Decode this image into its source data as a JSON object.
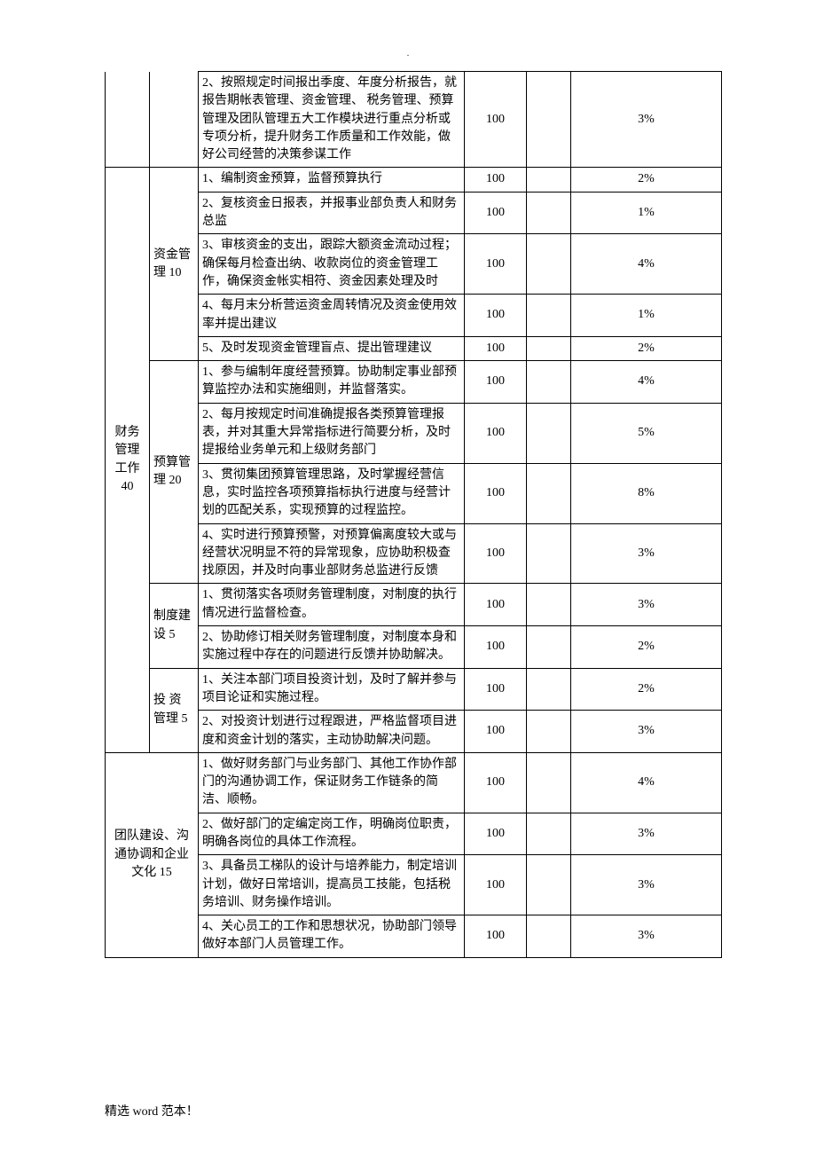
{
  "page": {
    "topmark": ".",
    "footer": "精选 word 范本！"
  },
  "table": {
    "colors": {
      "border": "#000000",
      "bg": "#ffffff",
      "text": "#000000"
    },
    "rows": [
      {
        "sec1": "",
        "sec2": "",
        "desc": "2、按照规定时间报出季度、年度分析报告，就报告期帐表管理、资金管理、 税务管理、预算管理及团队管理五大工作模块进行重点分析或专项分析，提升财务工作质量和工作效能，做好公司经营的决策参谋工作",
        "val": "100",
        "pct": "3%"
      },
      {
        "sec1": "财务管理工作40",
        "sec2": "资金管理 10",
        "desc": "1、编制资金预算，监督预算执行",
        "val": "100",
        "pct": "2%"
      },
      {
        "sec1": "",
        "sec2": "",
        "desc": "2、复核资金日报表，并报事业部负责人和财务总监",
        "val": "100",
        "pct": "1%"
      },
      {
        "sec1": "",
        "sec2": "",
        "desc": "3、审核资金的支出，跟踪大额资金流动过程； 确保每月检查出纳、收款岗位的资金管理工作，确保资金帐实相符、资金因素处理及时",
        "val": "100",
        "pct": "4%"
      },
      {
        "sec1": "",
        "sec2": "",
        "desc": "4、每月末分析营运资金周转情况及资金使用效率并提出建议",
        "val": "100",
        "pct": "1%"
      },
      {
        "sec1": "",
        "sec2": "",
        "desc": "5、及时发现资金管理盲点、提出管理建议",
        "val": "100",
        "pct": "2%"
      },
      {
        "sec1": "",
        "sec2": "预算管理 20",
        "desc": "1、参与编制年度经营预算。协助制定事业部预算监控办法和实施细则，并监督落实。",
        "val": "100",
        "pct": "4%"
      },
      {
        "sec1": "",
        "sec2": "",
        "desc": "2、每月按规定时间准确提报各类预算管理报表，并对其重大异常指标进行简要分析，及时提报给业务单元和上级财务部门",
        "val": "100",
        "pct": "5%"
      },
      {
        "sec1": "",
        "sec2": "",
        "desc": "3、贯彻集团预算管理思路，及时掌握经营信息，实时监控各项预算指标执行进度与经营计划的匹配关系，实现预算的过程监控。",
        "val": "100",
        "pct": "8%"
      },
      {
        "sec1": "",
        "sec2": "",
        "desc": "4、实时进行预算预警，对预算偏离度较大或与经营状况明显不符的异常现象，应协助积极查找原因，并及时向事业部财务总监进行反馈",
        "val": "100",
        "pct": "3%"
      },
      {
        "sec1": "",
        "sec2": "制度建设 5",
        "desc": "1、贯彻落实各项财务管理制度，对制度的执行情况进行监督检查。",
        "val": "100",
        "pct": "3%"
      },
      {
        "sec1": "",
        "sec2": "",
        "desc": "2、协助修订相关财务管理制度，对制度本身和实施过程中存在的问题进行反馈并协助解决。",
        "val": "100",
        "pct": "2%"
      },
      {
        "sec1": "",
        "sec2": "投 资 管理 5",
        "desc": "1、关注本部门项目投资计划，及时了解并参与项目论证和实施过程。",
        "val": "100",
        "pct": "2%"
      },
      {
        "sec1": "",
        "sec2": "",
        "desc": "2、对投资计划进行过程跟进，严格监督项目进度和资金计划的落实，主动协助解决问题。",
        "val": "100",
        "pct": "3%"
      },
      {
        "sec1": "团队建设、沟通协调和企业文化 15",
        "sec2": null,
        "desc": "1、做好财务部门与业务部门、其他工作协作部门的沟通协调工作，保证财务工作链条的简洁、顺畅。",
        "val": "100",
        "pct": "4%"
      },
      {
        "sec1": "",
        "sec2": null,
        "desc": "2、做好部门的定编定岗工作，明确岗位职责，明确各岗位的具体工作流程。",
        "val": "100",
        "pct": "3%"
      },
      {
        "sec1": "",
        "sec2": null,
        "desc": "3、具备员工梯队的设计与培养能力，制定培训计划，做好日常培训，提高员工技能，包括税务培训、财务操作培训。",
        "val": "100",
        "pct": "3%"
      },
      {
        "sec1": "",
        "sec2": null,
        "desc": "4、关心员工的工作和思想状况，协助部门领导做好本部门人员管理工作。",
        "val": "100",
        "pct": "3%"
      }
    ]
  }
}
